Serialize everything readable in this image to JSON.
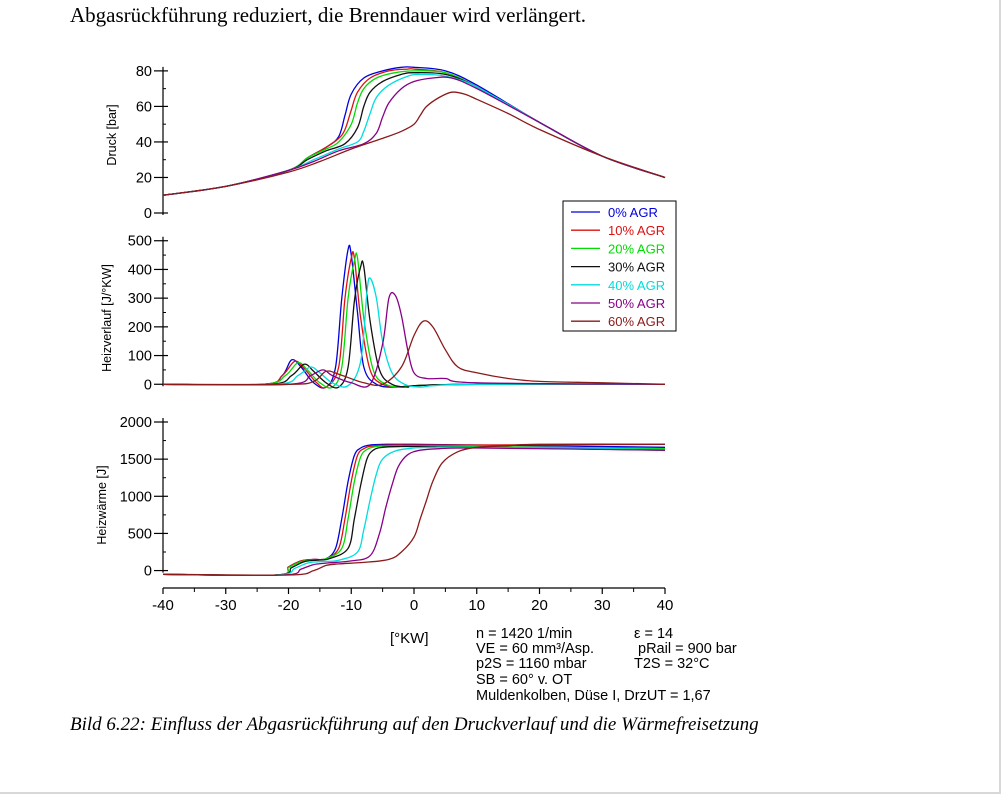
{
  "heading": "Abgasrückführung reduziert, die Brenndauer wird verlängert.",
  "caption": "Bild 6.22: Einfluss der Abgasrückführung auf den Druckverlauf und die Wärmefreisetzung",
  "colors": {
    "0% AGR": "#0000dd",
    "10% AGR": "#dd1111",
    "20% AGR": "#00dd00",
    "30% AGR": "#111111",
    "40% AGR": "#00dddd",
    "50% AGR": "#880088",
    "60% AGR": "#8b1a1a"
  },
  "conditions": {
    "n": "n = 1420 1/min",
    "eps": "ε = 14",
    "ve": "VE = 60 mm³/Asp.",
    "prail": "pRail = 900 bar",
    "p2s": "p2S = 1160 mbar",
    "t2s": "T2S = 32°C",
    "sb": "SB = 60° v. OT",
    "mulden": "Muldenkolben, Düse I, DrzUT = 1,67"
  },
  "chart_data": [
    {
      "type": "line",
      "title": "",
      "xlabel": "[°KW]",
      "ylabel": "Druck [bar]",
      "xlim": [
        -40,
        40
      ],
      "ylim": [
        0,
        85
      ],
      "yticks": [
        0,
        20,
        40,
        60,
        80
      ],
      "legend": "right",
      "series": [
        {
          "name": "0% AGR",
          "x": [
            -40,
            -30,
            -20,
            -17,
            -14,
            -12,
            -11,
            -10,
            -8,
            -5,
            -2,
            0,
            5,
            10,
            20,
            30,
            40
          ],
          "y": [
            10,
            15,
            24,
            31,
            37,
            43,
            55,
            67,
            76,
            80,
            82,
            82,
            80,
            72,
            51,
            32,
            20
          ]
        },
        {
          "name": "10% AGR",
          "x": [
            -40,
            -30,
            -20,
            -17,
            -14,
            -12,
            -11,
            -10,
            -9,
            -7,
            -4,
            -1,
            0,
            5,
            10,
            20,
            30,
            40
          ],
          "y": [
            10,
            15,
            24,
            31,
            37,
            42,
            47,
            58,
            68,
            76,
            80,
            81,
            81,
            79,
            71,
            51,
            32,
            20
          ]
        },
        {
          "name": "20% AGR",
          "x": [
            -40,
            -30,
            -20,
            -17,
            -14,
            -12,
            -10,
            -9,
            -8,
            -6,
            -3,
            0,
            5,
            10,
            20,
            30,
            40
          ],
          "y": [
            10,
            15,
            24,
            31,
            36,
            40,
            50,
            62,
            70,
            76,
            79,
            80,
            79,
            71,
            51,
            32,
            20
          ]
        },
        {
          "name": "30% AGR",
          "x": [
            -40,
            -30,
            -20,
            -17,
            -14,
            -11,
            -9,
            -8,
            -7,
            -5,
            -2,
            0,
            5,
            10,
            20,
            30,
            40
          ],
          "y": [
            10,
            15,
            24,
            30,
            35,
            39,
            48,
            60,
            68,
            74,
            78,
            79,
            78,
            71,
            51,
            32,
            20
          ]
        },
        {
          "name": "40% AGR",
          "x": [
            -40,
            -30,
            -20,
            -16,
            -12,
            -9,
            -8,
            -7,
            -6,
            -4,
            -1,
            1,
            5,
            10,
            20,
            30,
            40
          ],
          "y": [
            10,
            15,
            24,
            30,
            36,
            40,
            46,
            56,
            65,
            72,
            77,
            78,
            77,
            71,
            51,
            32,
            20
          ]
        },
        {
          "name": "50% AGR",
          "x": [
            -40,
            -30,
            -20,
            -16,
            -12,
            -8,
            -6,
            -5,
            -4,
            -2,
            0,
            3,
            6,
            10,
            20,
            30,
            40
          ],
          "y": [
            10,
            15,
            24,
            29,
            35,
            39,
            45,
            54,
            62,
            70,
            74,
            76,
            76,
            70,
            51,
            32,
            20
          ]
        },
        {
          "name": "60% AGR",
          "x": [
            -40,
            -30,
            -20,
            -15,
            -10,
            -5,
            -2,
            0,
            1,
            2,
            4,
            6,
            8,
            10,
            15,
            20,
            30,
            40
          ],
          "y": [
            10,
            15,
            23,
            29,
            36,
            42,
            46,
            50,
            55,
            60,
            65,
            68,
            67,
            64,
            56,
            47,
            32,
            20
          ]
        }
      ]
    },
    {
      "type": "line",
      "title": "",
      "xlabel": "[°KW]",
      "ylabel": "Heizverlauf [J/°KW]",
      "xlim": [
        -40,
        40
      ],
      "ylim": [
        -20,
        520
      ],
      "yticks": [
        0,
        100,
        200,
        300,
        400,
        500
      ],
      "series": [
        {
          "name": "0% AGR",
          "x": [
            -40,
            -24,
            -21,
            -19.5,
            -18,
            -16,
            -14,
            -12.5,
            -11.5,
            -10.5,
            -10,
            -9,
            -8,
            -6,
            -3,
            0,
            10,
            40
          ],
          "y": [
            0,
            0,
            30,
            85,
            60,
            5,
            -10,
            60,
            300,
            470,
            450,
            250,
            60,
            0,
            -10,
            -5,
            0,
            0
          ]
        },
        {
          "name": "10% AGR",
          "x": [
            -40,
            -24,
            -21,
            -19,
            -17.5,
            -15.5,
            -14,
            -12,
            -11,
            -10,
            -9.5,
            -8.5,
            -7,
            -5,
            -2,
            0,
            10,
            40
          ],
          "y": [
            0,
            0,
            30,
            80,
            55,
            5,
            -10,
            60,
            300,
            440,
            440,
            230,
            50,
            0,
            -10,
            -5,
            0,
            0
          ]
        },
        {
          "name": "20% AGR",
          "x": [
            -40,
            -24,
            -20.5,
            -18.5,
            -17,
            -15,
            -13,
            -11.5,
            -10.5,
            -9.5,
            -9,
            -8,
            -6.5,
            -4.5,
            -2,
            0,
            10,
            40
          ],
          "y": [
            0,
            0,
            30,
            75,
            50,
            5,
            -10,
            60,
            300,
            430,
            440,
            230,
            50,
            0,
            -10,
            -5,
            0,
            0
          ]
        },
        {
          "name": "30% AGR",
          "x": [
            -40,
            -23,
            -19.5,
            -17.5,
            -16,
            -14,
            -12,
            -10.5,
            -9.5,
            -8.5,
            -8,
            -7,
            -5.5,
            -3.5,
            -1,
            0,
            10,
            40
          ],
          "y": [
            0,
            0,
            30,
            70,
            45,
            5,
            -10,
            60,
            290,
            410,
            410,
            220,
            50,
            0,
            -10,
            -5,
            0,
            0
          ]
        },
        {
          "name": "40% AGR",
          "x": [
            -40,
            -22,
            -18.5,
            -16.5,
            -15,
            -13,
            -10.5,
            -8.5,
            -7.5,
            -7,
            -6,
            -5,
            -3.5,
            -1.5,
            1,
            3,
            10,
            40
          ],
          "y": [
            0,
            0,
            30,
            60,
            40,
            5,
            -5,
            80,
            320,
            370,
            300,
            150,
            40,
            0,
            -10,
            -5,
            0,
            0
          ]
        },
        {
          "name": "50% AGR",
          "x": [
            -40,
            -20,
            -16.5,
            -14.5,
            -13,
            -10,
            -7,
            -5,
            -4,
            -3,
            -2,
            -1,
            0,
            2,
            5,
            10,
            40
          ],
          "y": [
            0,
            0,
            30,
            50,
            30,
            5,
            0,
            140,
            300,
            310,
            240,
            120,
            40,
            20,
            20,
            5,
            0
          ]
        },
        {
          "name": "60% AGR",
          "x": [
            -40,
            -20,
            -16,
            -14,
            -12,
            -8,
            -5,
            -2,
            0,
            1.5,
            3,
            5,
            7,
            10,
            15,
            20,
            30,
            40
          ],
          "y": [
            0,
            0,
            10,
            45,
            35,
            5,
            0,
            60,
            170,
            220,
            200,
            120,
            60,
            40,
            20,
            10,
            5,
            0
          ]
        }
      ]
    },
    {
      "type": "line",
      "title": "",
      "xlabel": "[°KW]",
      "ylabel": "Heizwärme [J]",
      "xlim": [
        -40,
        40
      ],
      "ylim": [
        -100,
        2000
      ],
      "yticks": [
        0,
        500,
        1000,
        1500,
        2000
      ],
      "xticks": [
        -40,
        -30,
        -20,
        -10,
        0,
        10,
        20,
        30,
        40
      ],
      "series": [
        {
          "name": "0% AGR",
          "x": [
            -40,
            -22,
            -20,
            -18,
            -16,
            -14,
            -12.5,
            -11.5,
            -10.5,
            -9.5,
            -8.5,
            -7,
            -4,
            0,
            10,
            40
          ],
          "y": [
            -50,
            -60,
            50,
            130,
            150,
            160,
            300,
            700,
            1200,
            1550,
            1650,
            1690,
            1700,
            1700,
            1690,
            1660
          ]
        },
        {
          "name": "10% AGR",
          "x": [
            -40,
            -22,
            -20,
            -18,
            -16,
            -14,
            -12,
            -11,
            -10,
            -9,
            -8,
            -6.5,
            -3,
            0,
            10,
            40
          ],
          "y": [
            -50,
            -60,
            50,
            130,
            150,
            160,
            300,
            700,
            1200,
            1550,
            1640,
            1680,
            1690,
            1690,
            1690,
            1700
          ]
        },
        {
          "name": "20% AGR",
          "x": [
            -40,
            -22,
            -20,
            -18,
            -16,
            -14,
            -11.5,
            -10.5,
            -9.5,
            -8.5,
            -7.5,
            -6,
            -3,
            0,
            10,
            40
          ],
          "y": [
            -50,
            -60,
            40,
            120,
            140,
            160,
            300,
            700,
            1200,
            1530,
            1630,
            1670,
            1680,
            1680,
            1670,
            1640
          ]
        },
        {
          "name": "30% AGR",
          "x": [
            -40,
            -22,
            -19.5,
            -17.5,
            -15.5,
            -13.5,
            -10.5,
            -9.5,
            -8.5,
            -7.5,
            -6.5,
            -5,
            -2,
            0,
            10,
            40
          ],
          "y": [
            -50,
            -60,
            40,
            120,
            140,
            160,
            300,
            700,
            1150,
            1500,
            1620,
            1660,
            1670,
            1670,
            1660,
            1620
          ]
        },
        {
          "name": "40% AGR",
          "x": [
            -40,
            -22,
            -19,
            -17,
            -15,
            -12,
            -9,
            -8,
            -7,
            -6,
            -5,
            -3,
            0,
            3,
            10,
            40
          ],
          "y": [
            -50,
            -60,
            30,
            100,
            120,
            140,
            250,
            550,
            950,
            1300,
            1500,
            1610,
            1650,
            1660,
            1660,
            1630
          ]
        },
        {
          "name": "50% AGR",
          "x": [
            -40,
            -21,
            -18,
            -16,
            -14,
            -10,
            -7,
            -5.5,
            -4.5,
            -3.5,
            -2.5,
            -1,
            1,
            4,
            10,
            40
          ],
          "y": [
            -50,
            -60,
            20,
            80,
            100,
            130,
            200,
            500,
            850,
            1150,
            1400,
            1560,
            1620,
            1640,
            1650,
            1620
          ]
        },
        {
          "name": "60% AGR",
          "x": [
            -40,
            -20,
            -16,
            -14,
            -12,
            -8,
            -4,
            -2,
            0,
            1,
            2,
            3,
            4.5,
            7,
            10,
            15,
            20,
            40
          ],
          "y": [
            -50,
            -60,
            0,
            70,
            90,
            110,
            150,
            250,
            450,
            700,
            950,
            1200,
            1450,
            1600,
            1660,
            1680,
            1700,
            1700
          ]
        }
      ]
    }
  ]
}
